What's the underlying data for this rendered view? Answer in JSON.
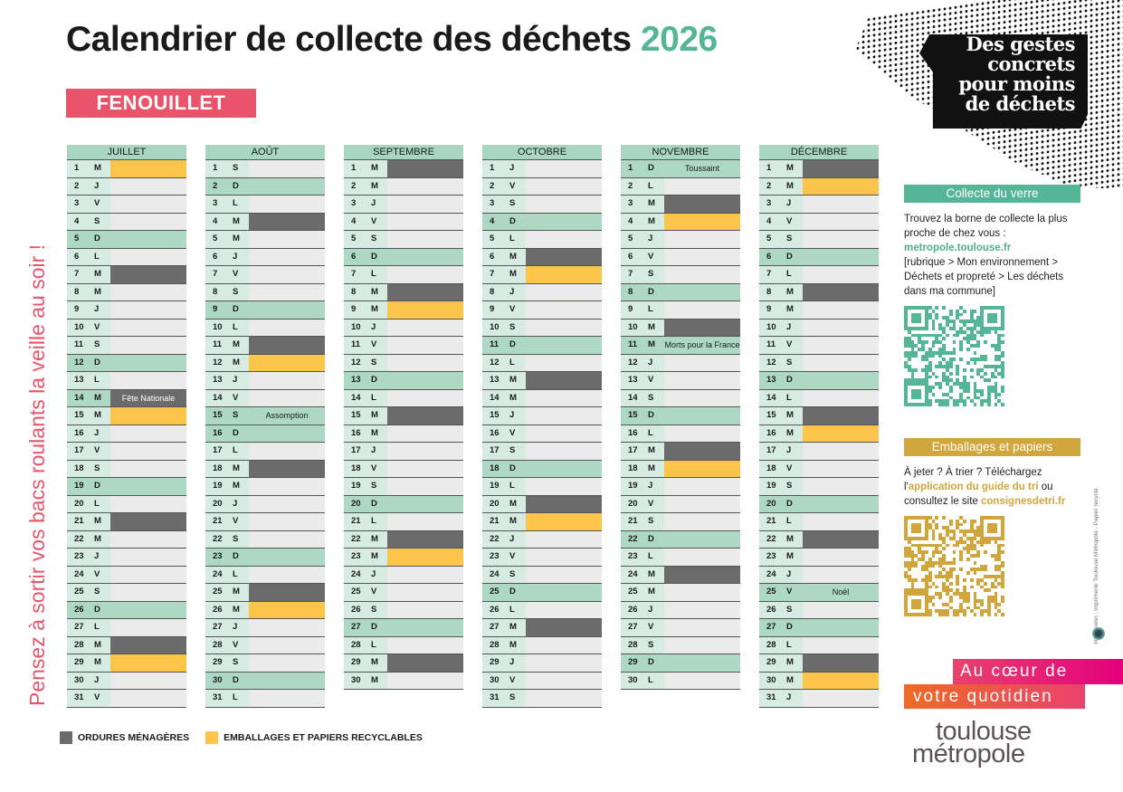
{
  "header": {
    "title": "Calendrier de collecte des déchets",
    "year": "2026",
    "commune": "FENOUILLET"
  },
  "reminder": "Pensez à sortir vos bacs roulants la veille au soir !",
  "slogan": [
    "Des gestes",
    "concrets",
    "pour moins",
    "de déchets"
  ],
  "colors": {
    "ordures": "#6b6b6b",
    "emballages": "#fcc54a",
    "sunday": "#acd8c4",
    "accent_pink": "#e9546b",
    "green": "#55b597",
    "gold": "#d1a63d"
  },
  "months": [
    {
      "name": "JUILLET",
      "days": "MJVSDLMMJVSDLMMJVSDLMMJVSDLMMJV",
      "collections": {
        "1": "e",
        "7": "o",
        "14": "o",
        "15": "e",
        "21": "o",
        "28": "o",
        "29": "e"
      },
      "holidays": {
        "14": "Fête Nationale"
      }
    },
    {
      "name": "AOÛT",
      "days": "SDLMMJVSDLMMJVSDLMMJVSDLMMJVSDL",
      "collections": {
        "4": "o",
        "11": "o",
        "12": "e",
        "18": "o",
        "25": "o",
        "26": "e"
      },
      "holidays": {
        "15": "Assomption"
      }
    },
    {
      "name": "SEPTEMBRE",
      "days": "MMJVSDLMMJVSDLMMJVSDLMMJVSDLMM",
      "collections": {
        "1": "o",
        "8": "o",
        "9": "e",
        "15": "o",
        "22": "o",
        "23": "e",
        "29": "o"
      },
      "holidays": {}
    },
    {
      "name": "OCTOBRE",
      "days": "JVSDLMMJVSDLMMJVSDLMMJVSDLMMJVS",
      "collections": {
        "6": "o",
        "7": "e",
        "13": "o",
        "20": "o",
        "21": "e",
        "27": "o"
      },
      "holidays": {}
    },
    {
      "name": "NOVEMBRE",
      "days": "DLMMJVSDLMMJVSDLMMJVSDLMMJVSDL",
      "collections": {
        "3": "o",
        "4": "e",
        "10": "o",
        "17": "o",
        "18": "e",
        "24": "o"
      },
      "holidays": {
        "1": "Toussaint",
        "11": "Morts pour la France"
      }
    },
    {
      "name": "DÉCEMBRE",
      "days": "MMJVSDLMMJVSDLMMJVSDLMMJVSDLMMJ",
      "collections": {
        "1": "o",
        "2": "e",
        "8": "o",
        "15": "o",
        "16": "e",
        "22": "o",
        "29": "o",
        "30": "e"
      },
      "holidays": {
        "25": "Noël"
      }
    }
  ],
  "legend": {
    "ordures": "ORDURES MÉNAGÈRES",
    "emballages": "EMBALLAGES ET PAPIERS RECYCLABLES"
  },
  "verre": {
    "title": "Collecte du verre",
    "text1": "Trouvez la borne de collecte la plus proche de chez vous :",
    "link": "metropole.toulouse.fr",
    "text2": "[rubrique > Mon environnement > Déchets et propreté > Les déchets dans ma commune]"
  },
  "emballages": {
    "title": "Emballages et papiers",
    "text1": "À jeter ? À trier ? Téléchargez l'",
    "link1": "application du guide du tri",
    "text2": " ou consultez le site ",
    "link2": "consignesdetri.fr"
  },
  "credit": "Impression : imprimerie Toulouse Métropole - Papier recyclé",
  "banner": {
    "line1": "Au cœur de",
    "line2": "votre quotidien"
  },
  "logo": {
    "line1": "toulouse",
    "line2": "métropole"
  }
}
